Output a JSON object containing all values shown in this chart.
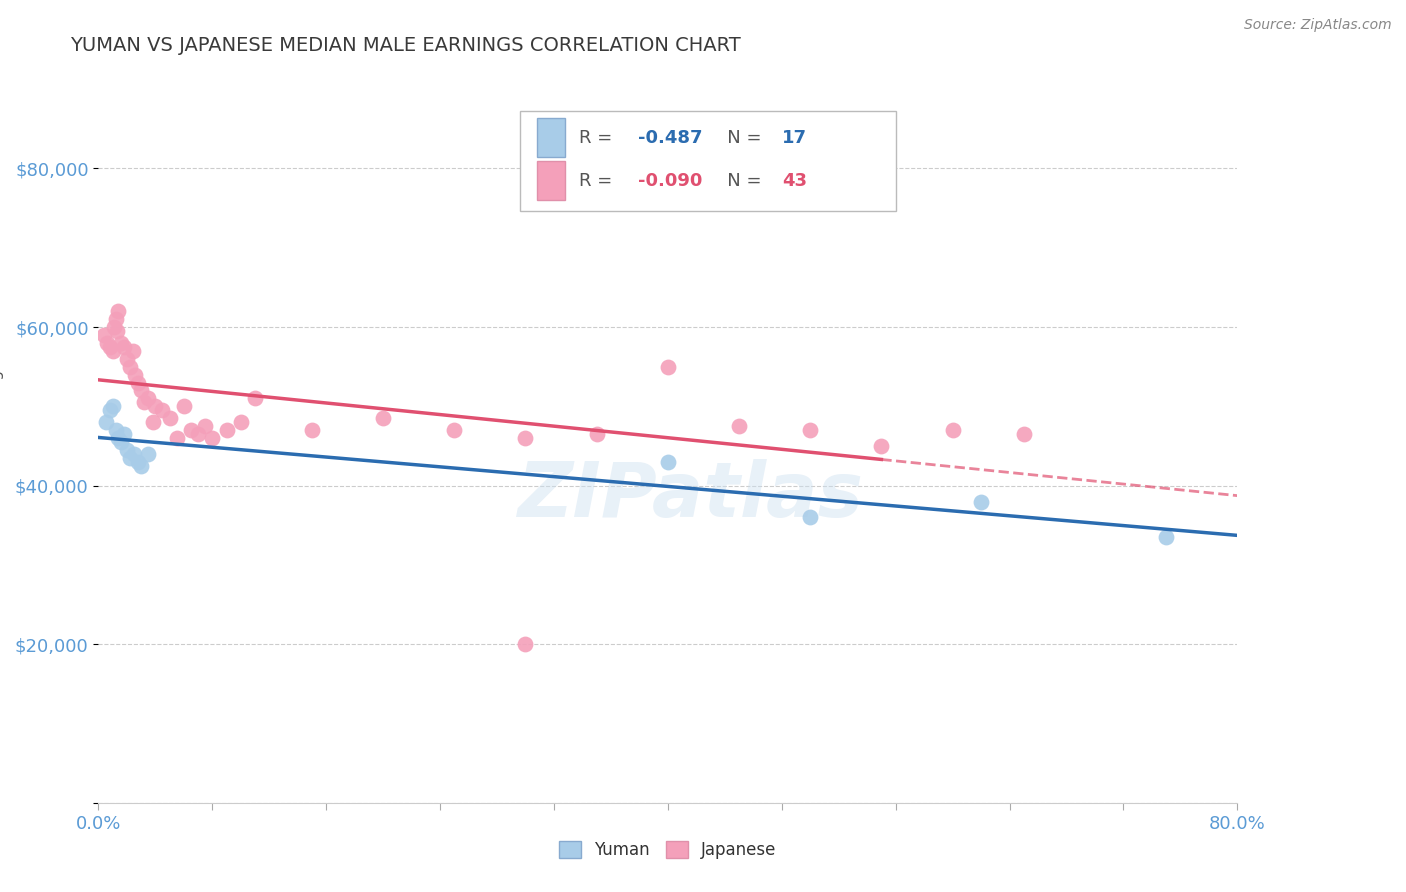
{
  "title": "YUMAN VS JAPANESE MEDIAN MALE EARNINGS CORRELATION CHART",
  "source": "Source: ZipAtlas.com",
  "ylabel": "Median Male Earnings",
  "ylim": [
    0,
    90000
  ],
  "xlim": [
    0.0,
    0.8
  ],
  "yticks": [
    0,
    20000,
    40000,
    60000,
    80000
  ],
  "ytick_labels": [
    "",
    "$20,000",
    "$40,000",
    "$60,000",
    "$80,000"
  ],
  "title_color": "#3a3a3a",
  "title_fontsize": 14,
  "axis_color": "#5b9bd5",
  "watermark": "ZIPatlas",
  "legend_R_yuman": "-0.487",
  "legend_N_yuman": "17",
  "legend_R_japanese": "-0.090",
  "legend_N_japanese": "43",
  "yuman_color": "#a8cce8",
  "japanese_color": "#f4a0ba",
  "yuman_line_color": "#2b6cb0",
  "japanese_line_color": "#e05070",
  "yuman_scatter_x": [
    0.005,
    0.008,
    0.01,
    0.012,
    0.014,
    0.016,
    0.018,
    0.02,
    0.022,
    0.025,
    0.028,
    0.03,
    0.035,
    0.4,
    0.62,
    0.75,
    0.5
  ],
  "yuman_scatter_y": [
    48000,
    49500,
    50000,
    47000,
    46000,
    45500,
    46500,
    44500,
    43500,
    44000,
    43000,
    42500,
    44000,
    43000,
    38000,
    33500,
    36000
  ],
  "japanese_scatter_x": [
    0.004,
    0.006,
    0.008,
    0.01,
    0.011,
    0.012,
    0.013,
    0.014,
    0.016,
    0.018,
    0.02,
    0.022,
    0.024,
    0.026,
    0.028,
    0.03,
    0.032,
    0.035,
    0.038,
    0.04,
    0.045,
    0.05,
    0.055,
    0.06,
    0.065,
    0.07,
    0.075,
    0.08,
    0.09,
    0.1,
    0.11,
    0.15,
    0.2,
    0.25,
    0.3,
    0.35,
    0.4,
    0.45,
    0.5,
    0.55,
    0.6,
    0.65,
    0.3
  ],
  "japanese_scatter_y": [
    59000,
    58000,
    57500,
    57000,
    60000,
    61000,
    59500,
    62000,
    58000,
    57500,
    56000,
    55000,
    57000,
    54000,
    53000,
    52000,
    50500,
    51000,
    48000,
    50000,
    49500,
    48500,
    46000,
    50000,
    47000,
    46500,
    47500,
    46000,
    47000,
    48000,
    51000,
    47000,
    48500,
    47000,
    46000,
    46500,
    55000,
    47500,
    47000,
    45000,
    47000,
    46500,
    20000
  ],
  "background_color": "#ffffff",
  "grid_color": "#cccccc",
  "fig_width": 14.06,
  "fig_height": 8.92
}
